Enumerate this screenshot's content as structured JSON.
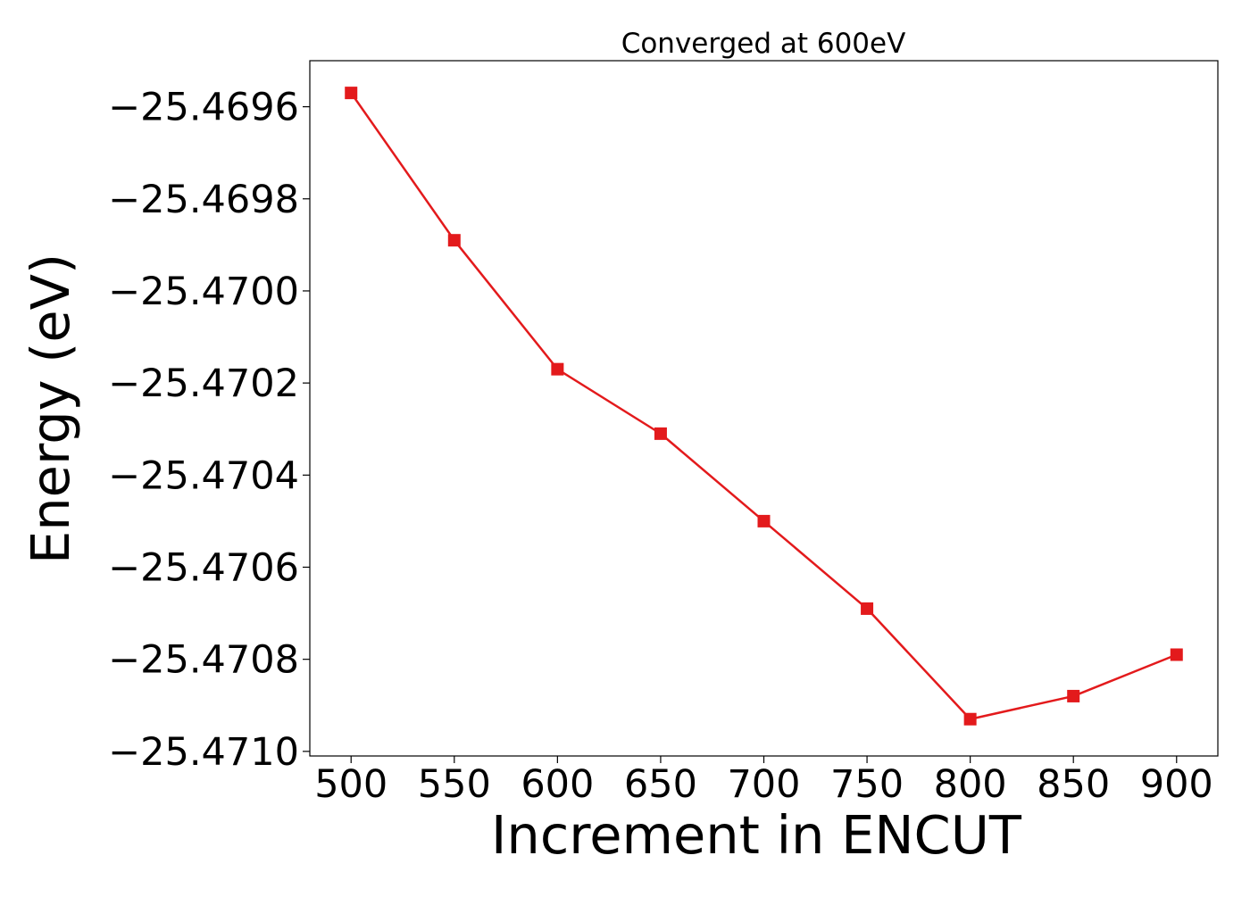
{
  "chart_data": {
    "type": "line",
    "title": "Converged at 600eV",
    "xlabel": "Increment in ENCUT",
    "ylabel": "Energy (eV)",
    "x": [
      500,
      550,
      600,
      650,
      700,
      750,
      800,
      850,
      900
    ],
    "series": [
      {
        "values": [
          -25.46957,
          -25.46989,
          -25.47017,
          -25.47031,
          -25.4705,
          -25.47069,
          -25.47093,
          -25.47088,
          -25.47079
        ],
        "color": "#e31a1c",
        "marker": "square"
      }
    ],
    "xlim": [
      480,
      920
    ],
    "ylim": [
      -25.47101,
      -25.4695
    ],
    "xticks": [
      500,
      550,
      600,
      650,
      700,
      750,
      800,
      850,
      900
    ],
    "yticks": [
      -25.4696,
      -25.4698,
      -25.47,
      -25.4702,
      -25.4704,
      -25.4706,
      -25.4708,
      -25.471
    ],
    "ytick_labels": [
      "−25.4696",
      "−25.4698",
      "−25.4700",
      "−25.4702",
      "−25.4704",
      "−25.4706",
      "−25.4708",
      "−25.4710"
    ],
    "grid": false,
    "legend": "none"
  }
}
